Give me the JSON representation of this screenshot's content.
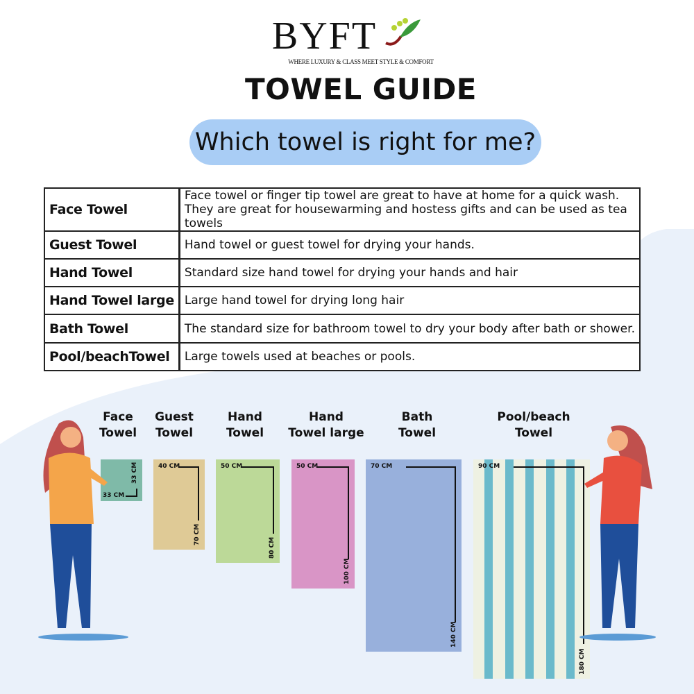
{
  "brand": {
    "name": "BYFT",
    "tagline": "WHERE LUXURY & CLASS MEET STYLE & COMFORT"
  },
  "title": "TOWEL GUIDE",
  "subtitle": "Which towel is right for me?",
  "table": [
    {
      "name": "Face Towel",
      "desc": [
        "Face towel or finger tip towel are great to have at home for a quick wash.",
        "They are great for housewarming and hostess gifts and can be used as tea towels"
      ]
    },
    {
      "name": "Guest Towel",
      "desc": [
        "Hand towel or guest towel for drying your hands."
      ]
    },
    {
      "name": "Hand Towel",
      "desc": [
        "Standard size hand towel for drying your hands and hair"
      ]
    },
    {
      "name": "Hand Towel large",
      "desc": [
        "Large hand towel for drying long hair"
      ]
    },
    {
      "name": "Bath Towel",
      "desc": [
        "The standard size for bathroom towel to dry your body after bath or shower."
      ]
    },
    {
      "name": "Pool/beachTowel",
      "desc": [
        "Large towels used at beaches or pools."
      ]
    }
  ],
  "towels": [
    {
      "label": [
        "Face",
        "Towel"
      ],
      "width": "33 CM",
      "height": "33 CM",
      "color": "#7fbaa8"
    },
    {
      "label": [
        "Guest",
        "Towel"
      ],
      "width": "40 CM",
      "height": "70 CM",
      "color": "#dfca96"
    },
    {
      "label": [
        "Hand",
        "Towel"
      ],
      "width": "50 CM",
      "height": "80 CM",
      "color": "#bcd998"
    },
    {
      "label": [
        "Hand",
        "Towel large"
      ],
      "width": "50 CM",
      "height": "100 CM",
      "color": "#d995c6"
    },
    {
      "label": [
        "Bath",
        "Towel"
      ],
      "width": "70 CM",
      "height": "140 CM",
      "color": "#98b0dc"
    },
    {
      "label": [
        "Pool/beach",
        "Towel"
      ],
      "width": "90 CM",
      "height": "180 CM",
      "color": "#eef1e2",
      "stripe_color": "#6bbacb"
    }
  ]
}
